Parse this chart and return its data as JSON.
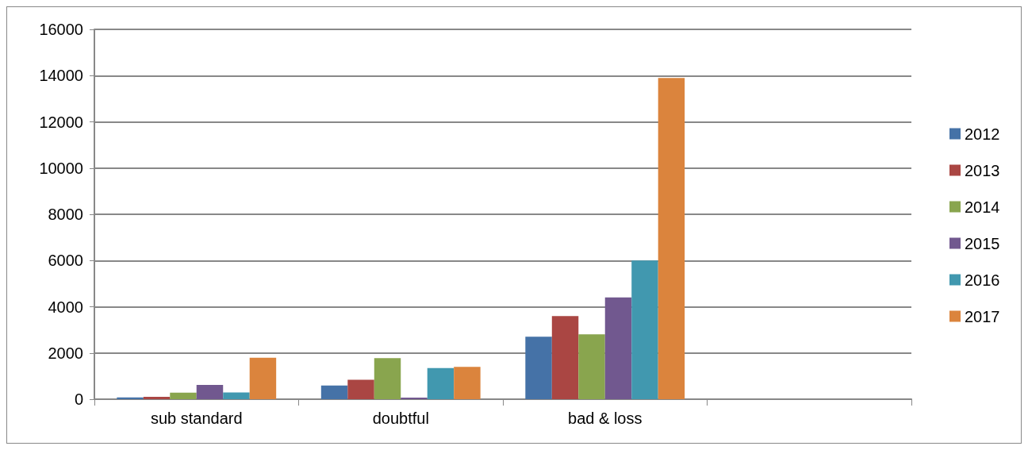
{
  "chart_data": {
    "type": "bar",
    "categories": [
      "sub standard",
      "doubtful",
      "bad & loss",
      null
    ],
    "series": [
      {
        "name": "2012",
        "color": "#4572a7",
        "values": [
          80,
          590,
          2700,
          null
        ]
      },
      {
        "name": "2013",
        "color": "#aa4643",
        "values": [
          100,
          840,
          3600,
          null
        ]
      },
      {
        "name": "2014",
        "color": "#89a54e",
        "values": [
          280,
          1780,
          2810,
          null
        ]
      },
      {
        "name": "2015",
        "color": "#71588f",
        "values": [
          620,
          70,
          4400,
          null
        ]
      },
      {
        "name": "2016",
        "color": "#4198af",
        "values": [
          290,
          1350,
          6000,
          null
        ]
      },
      {
        "name": "2017",
        "color": "#db843d",
        "values": [
          1790,
          1400,
          13900,
          null
        ]
      }
    ],
    "ylim": [
      0,
      16000
    ],
    "yticks": [
      0,
      2000,
      4000,
      6000,
      8000,
      10000,
      12000,
      14000,
      16000
    ],
    "grid": "y",
    "legend": "right"
  }
}
